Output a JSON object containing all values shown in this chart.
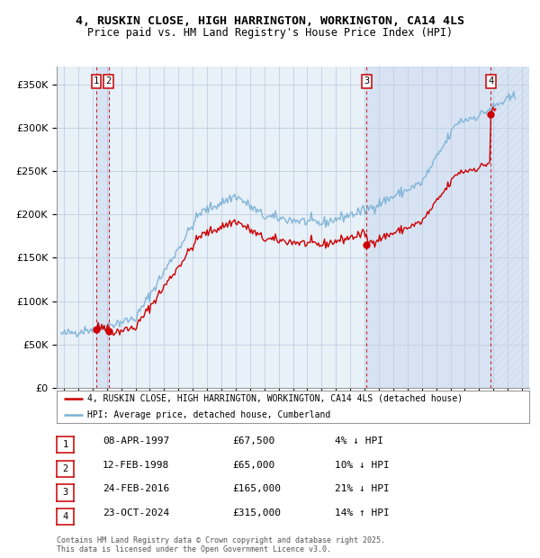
{
  "title_line1": "4, RUSKIN CLOSE, HIGH HARRINGTON, WORKINGTON, CA14 4LS",
  "title_line2": "Price paid vs. HM Land Registry's House Price Index (HPI)",
  "ylim": [
    0,
    370000
  ],
  "yticks": [
    0,
    50000,
    100000,
    150000,
    200000,
    250000,
    300000,
    350000
  ],
  "ytick_labels": [
    "£0",
    "£50K",
    "£100K",
    "£150K",
    "£200K",
    "£250K",
    "£300K",
    "£350K"
  ],
  "hpi_color": "#7ab0d4",
  "price_color": "#cc0000",
  "bg_color": "#e8f0f8",
  "grid_color": "#c0cfe0",
  "transaction_dates": [
    1997.27,
    1998.12,
    2016.15,
    2024.81
  ],
  "transaction_prices": [
    67500,
    65000,
    165000,
    315000
  ],
  "transaction_labels": [
    "1",
    "2",
    "3",
    "4"
  ],
  "legend_price_label": "4, RUSKIN CLOSE, HIGH HARRINGTON, WORKINGTON, CA14 4LS (detached house)",
  "legend_hpi_label": "HPI: Average price, detached house, Cumberland",
  "table_entries": [
    {
      "num": "1",
      "date": "08-APR-1997",
      "price": "£67,500",
      "hpi": "4% ↓ HPI"
    },
    {
      "num": "2",
      "date": "12-FEB-1998",
      "price": "£65,000",
      "hpi": "10% ↓ HPI"
    },
    {
      "num": "3",
      "date": "24-FEB-2016",
      "price": "£165,000",
      "hpi": "21% ↓ HPI"
    },
    {
      "num": "4",
      "date": "23-OCT-2024",
      "price": "£315,000",
      "hpi": "14% ↑ HPI"
    }
  ],
  "footnote": "Contains HM Land Registry data © Crown copyright and database right 2025.\nThis data is licensed under the Open Government Licence v3.0.",
  "xmin": 1994.5,
  "xmax": 2027.5
}
